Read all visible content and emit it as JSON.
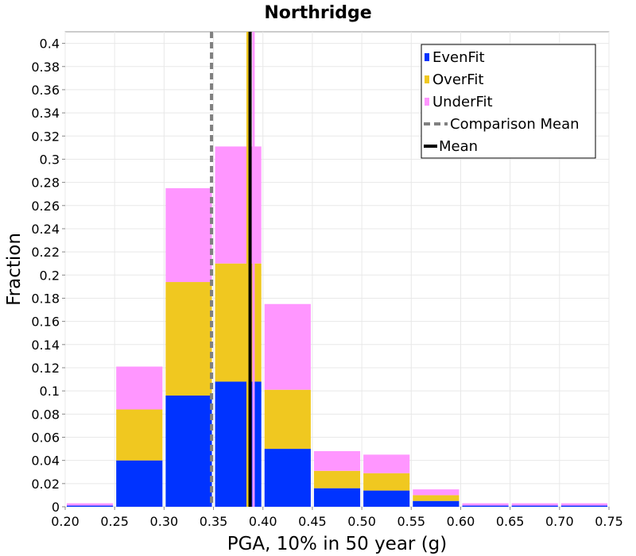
{
  "chart_data": {
    "type": "bar",
    "stacked": true,
    "title": "Northridge",
    "xlabel": "PGA, 10% in 50 year (g)",
    "ylabel": "Fraction",
    "xlim": [
      0.2,
      0.75
    ],
    "ylim": [
      0,
      0.41
    ],
    "grid": true,
    "legend_position": "top-right",
    "x_ticks": [
      "0.20",
      "0.25",
      "0.30",
      "0.35",
      "0.40",
      "0.45",
      "0.50",
      "0.55",
      "0.60",
      "0.65",
      "0.70",
      "0.75"
    ],
    "y_ticks": [
      "0",
      "0.02",
      "0.04",
      "0.06",
      "0.08",
      "0.1",
      "0.12",
      "0.14",
      "0.16",
      "0.18",
      "0.2",
      "0.22",
      "0.24",
      "0.26",
      "0.28",
      "0.3",
      "0.32",
      "0.34",
      "0.36",
      "0.38",
      "0.4"
    ],
    "bins": [
      {
        "x0": 0.2,
        "x1": 0.25
      },
      {
        "x0": 0.25,
        "x1": 0.3
      },
      {
        "x0": 0.3,
        "x1": 0.35
      },
      {
        "x0": 0.35,
        "x1": 0.4
      },
      {
        "x0": 0.4,
        "x1": 0.45
      },
      {
        "x0": 0.45,
        "x1": 0.5
      },
      {
        "x0": 0.5,
        "x1": 0.55
      },
      {
        "x0": 0.55,
        "x1": 0.6
      },
      {
        "x0": 0.6,
        "x1": 0.65
      },
      {
        "x0": 0.65,
        "x1": 0.7
      },
      {
        "x0": 0.7,
        "x1": 0.75
      }
    ],
    "series": [
      {
        "name": "EvenFit",
        "color": "#0033ff",
        "values": [
          0.001,
          0.04,
          0.096,
          0.108,
          0.05,
          0.016,
          0.014,
          0.005,
          0.001,
          0.001,
          0.001
        ]
      },
      {
        "name": "OverFit",
        "color": "#f0c820",
        "values": [
          0.0,
          0.044,
          0.098,
          0.102,
          0.051,
          0.015,
          0.015,
          0.005,
          0.0,
          0.0,
          0.0
        ]
      },
      {
        "name": "UnderFit",
        "color": "#ff96ff",
        "values": [
          0.002,
          0.037,
          0.081,
          0.101,
          0.074,
          0.017,
          0.016,
          0.005,
          0.002,
          0.002,
          0.002
        ]
      }
    ],
    "lines": [
      {
        "name": "Comparison Mean",
        "x": 0.348,
        "color": "#808080",
        "style": "dashed"
      },
      {
        "name": "Mean",
        "x": 0.387,
        "color": "#000000",
        "style": "solid"
      }
    ],
    "mean_markers": [
      {
        "series": "OverFit",
        "x": 0.3845
      },
      {
        "series": "UnderFit",
        "x": 0.3905
      }
    ]
  }
}
